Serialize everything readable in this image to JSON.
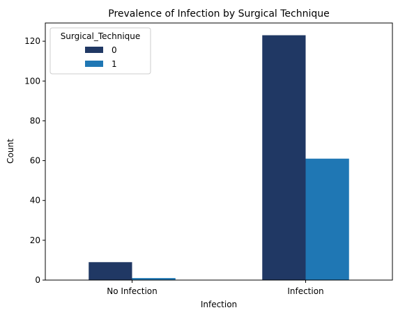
{
  "chart_data": {
    "type": "bar",
    "title": "Prevalence of Infection by Surgical Technique",
    "xlabel": "Infection",
    "ylabel": "Count",
    "categories": [
      "No Infection",
      "Infection"
    ],
    "ylim": [
      0,
      129.15
    ],
    "yticks": [
      0,
      20,
      40,
      60,
      80,
      100,
      120
    ],
    "grid": false,
    "legend": {
      "title": "Surgical_Technique",
      "placement": "top-left"
    },
    "series": [
      {
        "name": "0",
        "values": [
          9,
          123
        ],
        "color": "#203864"
      },
      {
        "name": "1",
        "values": [
          1,
          61
        ],
        "color": "#1f77b4"
      }
    ]
  }
}
